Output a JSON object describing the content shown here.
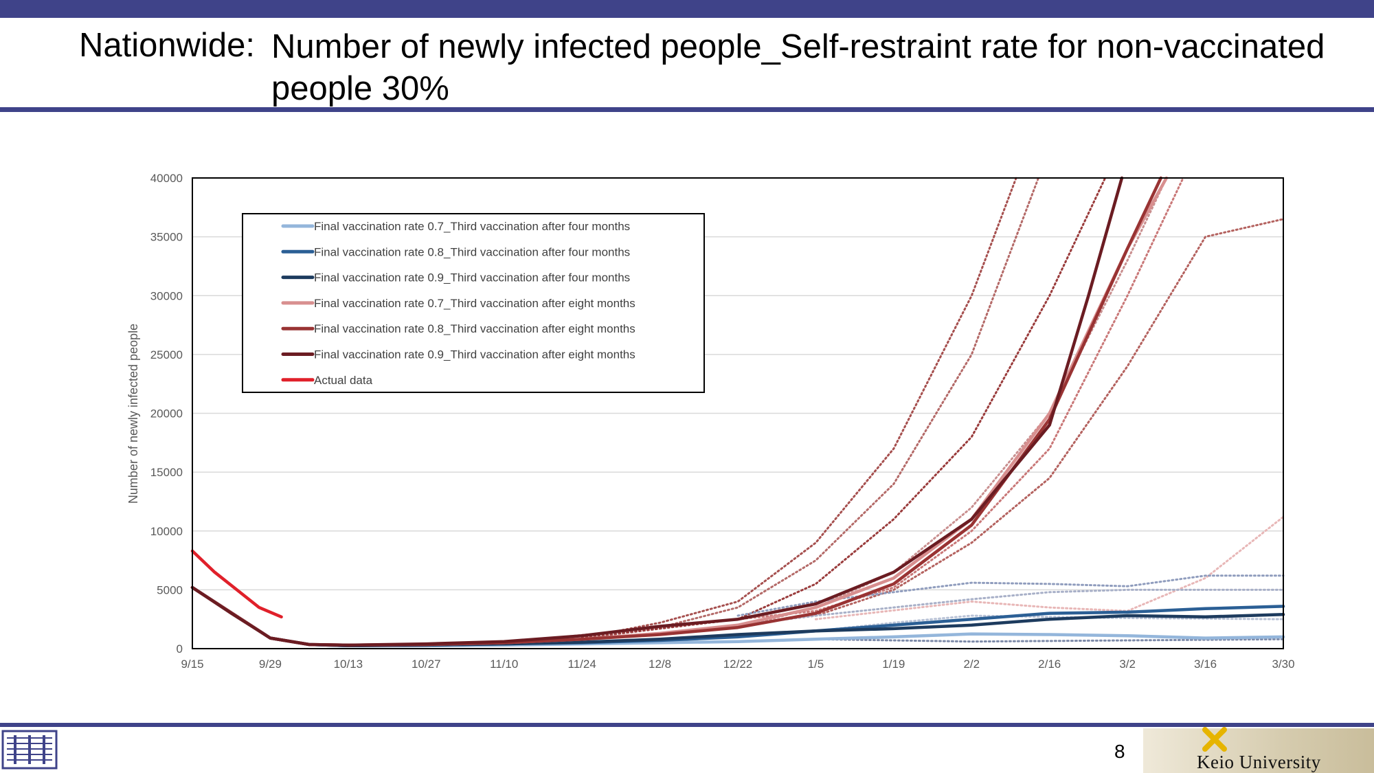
{
  "slide": {
    "title_label": "Nationwide:",
    "title_text": "Number of newly infected people_Self-restraint rate for non-vaccinated people 30%",
    "page_number": "8",
    "footer_logo_text": "Keio University",
    "colors": {
      "bar": "#3f4389"
    }
  },
  "chart_data": {
    "type": "line",
    "title": "",
    "xlabel": "",
    "ylabel": "Number of newly infected people",
    "ylim": [
      0,
      40000
    ],
    "yticks": [
      "0",
      "5000",
      "10000",
      "15000",
      "20000",
      "25000",
      "30000",
      "35000",
      "40000"
    ],
    "x_day_range": [
      0,
      196
    ],
    "xtick_labels": [
      "9/15",
      "9/29",
      "10/13",
      "10/27",
      "11/10",
      "11/24",
      "12/8",
      "12/22",
      "1/5",
      "1/19",
      "2/2",
      "2/16",
      "3/2",
      "3/16",
      "3/30"
    ],
    "legend_placement": "top-left",
    "grid": "horizontal",
    "series": [
      {
        "name": "Final vaccination rate 0.7_Third vaccination after four months",
        "color": "#94b6db",
        "style": "solid",
        "points": [
          [
            0,
            5200
          ],
          [
            14,
            900
          ],
          [
            21,
            350
          ],
          [
            28,
            250
          ],
          [
            42,
            250
          ],
          [
            56,
            300
          ],
          [
            70,
            400
          ],
          [
            84,
            500
          ],
          [
            98,
            600
          ],
          [
            112,
            800
          ],
          [
            126,
            1000
          ],
          [
            140,
            1250
          ],
          [
            154,
            1200
          ],
          [
            168,
            1100
          ],
          [
            182,
            900
          ],
          [
            196,
            1000
          ]
        ]
      },
      {
        "name": "Final vaccination rate 0.8_Third vaccination after four months",
        "color": "#2b5f95",
        "style": "solid",
        "points": [
          [
            0,
            5200
          ],
          [
            14,
            900
          ],
          [
            21,
            350
          ],
          [
            28,
            250
          ],
          [
            42,
            300
          ],
          [
            56,
            400
          ],
          [
            70,
            500
          ],
          [
            84,
            700
          ],
          [
            98,
            1000
          ],
          [
            112,
            1500
          ],
          [
            126,
            2000
          ],
          [
            140,
            2500
          ],
          [
            154,
            3000
          ],
          [
            168,
            3100
          ],
          [
            182,
            3400
          ],
          [
            196,
            3600
          ]
        ]
      },
      {
        "name": "Final vaccination rate 0.9_Third vaccination after four months",
        "color": "#1d3b5e",
        "style": "solid",
        "points": [
          [
            0,
            5200
          ],
          [
            14,
            900
          ],
          [
            21,
            350
          ],
          [
            28,
            250
          ],
          [
            42,
            300
          ],
          [
            56,
            400
          ],
          [
            70,
            550
          ],
          [
            84,
            800
          ],
          [
            98,
            1200
          ],
          [
            112,
            1500
          ],
          [
            126,
            1700
          ],
          [
            140,
            2000
          ],
          [
            154,
            2500
          ],
          [
            168,
            2800
          ],
          [
            182,
            2700
          ],
          [
            196,
            2900
          ]
        ]
      },
      {
        "name": "Final vaccination rate 0.7_Third vaccination after eight months",
        "color": "#d88f8f",
        "style": "solid",
        "points": [
          [
            0,
            5200
          ],
          [
            14,
            900
          ],
          [
            21,
            350
          ],
          [
            28,
            300
          ],
          [
            42,
            350
          ],
          [
            56,
            500
          ],
          [
            70,
            800
          ],
          [
            84,
            1300
          ],
          [
            98,
            2000
          ],
          [
            112,
            3500
          ],
          [
            126,
            6000
          ],
          [
            140,
            11000
          ],
          [
            154,
            20000
          ],
          [
            168,
            34000
          ],
          [
            175,
            40000
          ]
        ]
      },
      {
        "name": "Final vaccination rate 0.8_Third vaccination after eight months",
        "color": "#993333",
        "style": "solid",
        "points": [
          [
            0,
            5200
          ],
          [
            14,
            900
          ],
          [
            21,
            350
          ],
          [
            28,
            300
          ],
          [
            42,
            350
          ],
          [
            56,
            500
          ],
          [
            70,
            800
          ],
          [
            84,
            1200
          ],
          [
            98,
            1800
          ],
          [
            112,
            3000
          ],
          [
            126,
            5500
          ],
          [
            140,
            10500
          ],
          [
            154,
            19500
          ],
          [
            168,
            34000
          ],
          [
            174,
            40000
          ]
        ]
      },
      {
        "name": "Final vaccination rate 0.9_Third vaccination after eight months",
        "color": "#6b1c22",
        "style": "solid",
        "points": [
          [
            0,
            5200
          ],
          [
            7,
            3000
          ],
          [
            14,
            900
          ],
          [
            21,
            350
          ],
          [
            28,
            300
          ],
          [
            42,
            400
          ],
          [
            56,
            600
          ],
          [
            70,
            1100
          ],
          [
            84,
            1900
          ],
          [
            98,
            2500
          ],
          [
            112,
            3800
          ],
          [
            126,
            6500
          ],
          [
            140,
            11000
          ],
          [
            154,
            19000
          ],
          [
            161,
            30000
          ],
          [
            167,
            40000
          ]
        ]
      },
      {
        "name": "Actual data",
        "color": "#e0202a",
        "style": "solid",
        "points": [
          [
            0,
            8300
          ],
          [
            4,
            6500
          ],
          [
            8,
            5000
          ],
          [
            12,
            3500
          ],
          [
            16,
            2700
          ]
        ]
      },
      {
        "name": "",
        "color": "#c98f8f",
        "style": "dotted",
        "points": [
          [
            98,
            1800
          ],
          [
            112,
            3500
          ],
          [
            126,
            6500
          ],
          [
            140,
            12000
          ],
          [
            154,
            20000
          ],
          [
            168,
            33000
          ],
          [
            175,
            40000
          ]
        ]
      },
      {
        "name": "",
        "color": "#a6504f",
        "style": "dotted",
        "points": [
          [
            70,
            900
          ],
          [
            84,
            2200
          ],
          [
            98,
            4000
          ],
          [
            112,
            9000
          ],
          [
            126,
            17000
          ],
          [
            140,
            30000
          ],
          [
            148,
            40000
          ]
        ]
      },
      {
        "name": "",
        "color": "#b46a68",
        "style": "dotted",
        "points": [
          [
            56,
            500
          ],
          [
            84,
            1800
          ],
          [
            98,
            3500
          ],
          [
            112,
            7500
          ],
          [
            126,
            14000
          ],
          [
            140,
            25000
          ],
          [
            152,
            40000
          ]
        ]
      },
      {
        "name": "",
        "color": "#9a3c3c",
        "style": "dotted",
        "points": [
          [
            70,
            900
          ],
          [
            98,
            2500
          ],
          [
            112,
            5500
          ],
          [
            126,
            11000
          ],
          [
            140,
            18000
          ],
          [
            154,
            30000
          ],
          [
            164,
            40000
          ]
        ]
      },
      {
        "name": "",
        "color": "#b4625f",
        "style": "dotted",
        "points": [
          [
            84,
            1200
          ],
          [
            112,
            2800
          ],
          [
            126,
            5000
          ],
          [
            140,
            9000
          ],
          [
            154,
            14500
          ],
          [
            168,
            24000
          ],
          [
            182,
            35000
          ],
          [
            196,
            36500
          ]
        ]
      },
      {
        "name": "",
        "color": "#c97878",
        "style": "dotted",
        "points": [
          [
            98,
            2500
          ],
          [
            112,
            3200
          ],
          [
            126,
            5200
          ],
          [
            140,
            10000
          ],
          [
            154,
            17000
          ],
          [
            168,
            30000
          ],
          [
            178,
            40000
          ]
        ]
      },
      {
        "name": "",
        "color": "#e8b7b7",
        "style": "dotted",
        "points": [
          [
            112,
            2500
          ],
          [
            140,
            4000
          ],
          [
            154,
            3500
          ],
          [
            168,
            3200
          ],
          [
            182,
            6000
          ],
          [
            196,
            11200
          ]
        ]
      },
      {
        "name": "",
        "color": "#8f9cbd",
        "style": "dotted",
        "points": [
          [
            98,
            2800
          ],
          [
            112,
            4000
          ],
          [
            126,
            4800
          ],
          [
            140,
            5600
          ],
          [
            154,
            5500
          ],
          [
            168,
            5300
          ],
          [
            182,
            6200
          ],
          [
            196,
            6200
          ]
        ]
      },
      {
        "name": "",
        "color": "#a8b0c8",
        "style": "dotted",
        "points": [
          [
            98,
            2000
          ],
          [
            112,
            2800
          ],
          [
            126,
            3500
          ],
          [
            140,
            4200
          ],
          [
            154,
            4800
          ],
          [
            168,
            5000
          ],
          [
            196,
            5000
          ]
        ]
      },
      {
        "name": "",
        "color": "#b8c2d6",
        "style": "dotted",
        "points": [
          [
            112,
            1500
          ],
          [
            126,
            2200
          ],
          [
            140,
            2800
          ],
          [
            154,
            2700
          ],
          [
            168,
            2600
          ],
          [
            196,
            2500
          ]
        ]
      },
      {
        "name": "",
        "color": "#7d8aa8",
        "style": "dotted",
        "points": [
          [
            112,
            800
          ],
          [
            140,
            600
          ],
          [
            168,
            700
          ],
          [
            196,
            800
          ]
        ]
      }
    ]
  }
}
